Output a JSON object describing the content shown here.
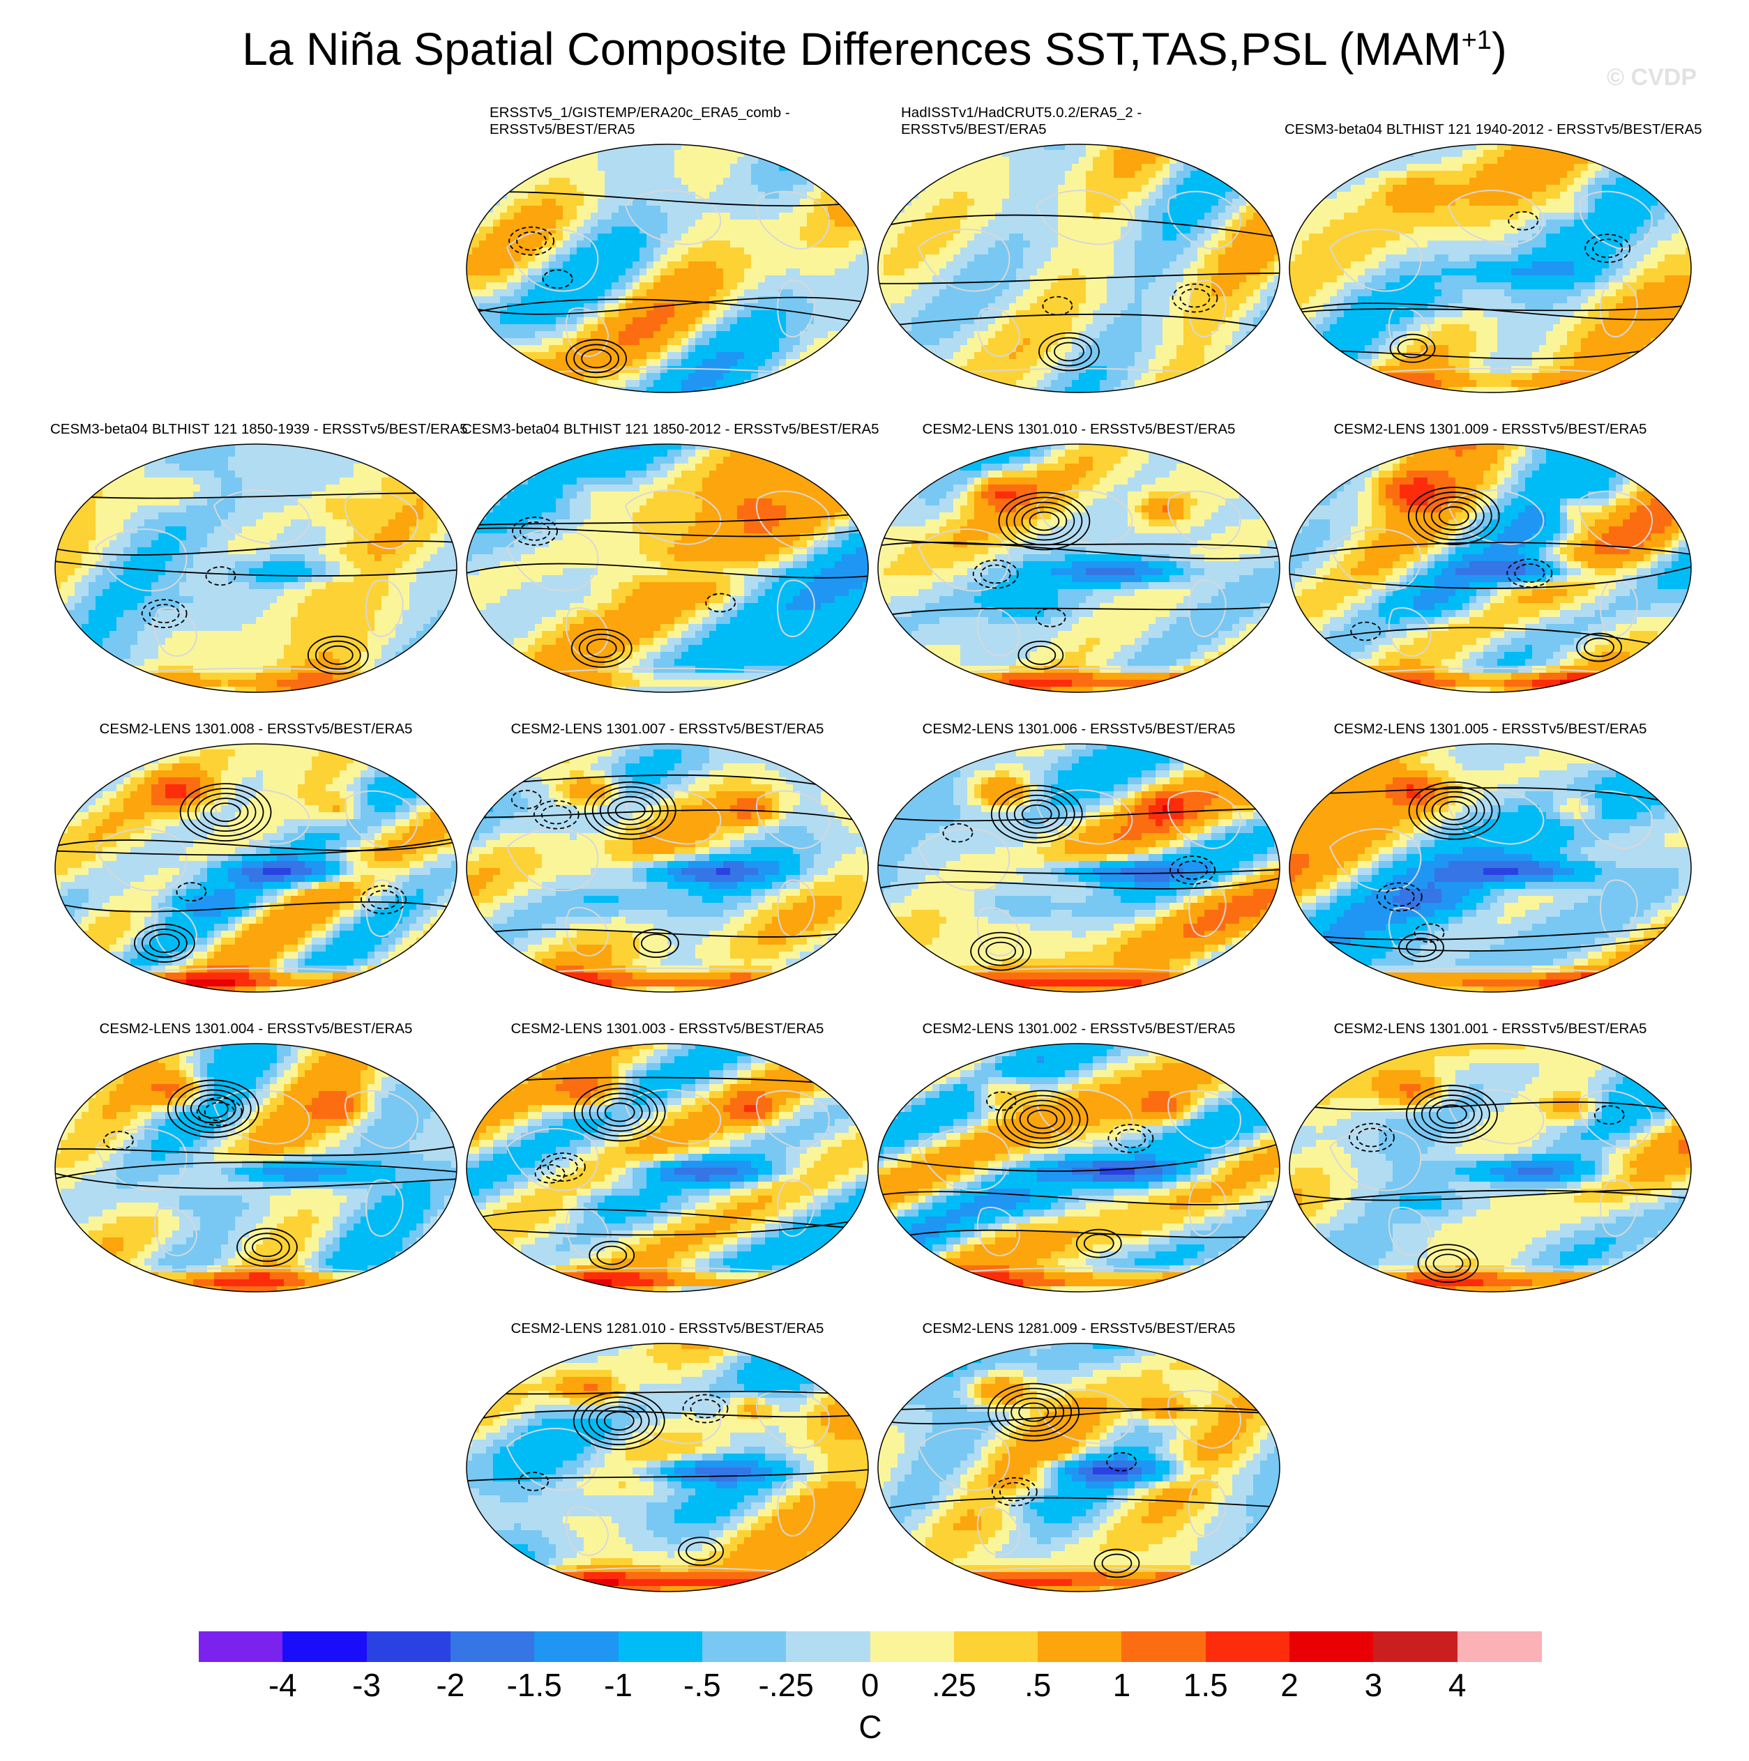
{
  "title_main": "La Niña Spatial Composite Differences SST,TAS,PSL (MAM",
  "title_superscript": "+1",
  "title_close": ")",
  "watermark": "© CVDP",
  "colors": {
    "land_outline": "#d8d8d8",
    "contour": "#000000"
  },
  "panels": [
    {
      "lines": [
        "ERSSTv5_1/GISTEMP/ERA20c_ERA5_comb -",
        "ERSSTv5/BEST/ERA5"
      ],
      "row": 0,
      "col": 1,
      "seed": 11,
      "pattern": 0
    },
    {
      "lines": [
        "HadISSTv1/HadCRUT5.0.2/ERA5_2 -",
        "ERSSTv5/BEST/ERA5"
      ],
      "row": 0,
      "col": 2,
      "seed": 23,
      "pattern": 0
    },
    {
      "lines": [
        "CESM3-beta04 BLTHIST 121 1940-2012 - ERSSTv5/BEST/ERA5"
      ],
      "row": 0,
      "col": 3,
      "seed": 37,
      "pattern": 1
    },
    {
      "lines": [
        "CESM3-beta04 BLTHIST 121 1850-1939 - ERSSTv5/BEST/ERA5"
      ],
      "row": 1,
      "col": 0,
      "seed": 41,
      "pattern": 1
    },
    {
      "lines": [
        "CESM3-beta04 BLTHIST 121 1850-2012 - ERSSTv5/BEST/ERA5"
      ],
      "row": 1,
      "col": 1,
      "seed": 53,
      "pattern": 1
    },
    {
      "lines": [
        "CESM2-LENS 1301.010 - ERSSTv5/BEST/ERA5"
      ],
      "row": 1,
      "col": 2,
      "seed": 61,
      "pattern": 2
    },
    {
      "lines": [
        "CESM2-LENS 1301.009 - ERSSTv5/BEST/ERA5"
      ],
      "row": 1,
      "col": 3,
      "seed": 71,
      "pattern": 2
    },
    {
      "lines": [
        "CESM2-LENS 1301.008 - ERSSTv5/BEST/ERA5"
      ],
      "row": 2,
      "col": 0,
      "seed": 83,
      "pattern": 2
    },
    {
      "lines": [
        "CESM2-LENS 1301.007 - ERSSTv5/BEST/ERA5"
      ],
      "row": 2,
      "col": 1,
      "seed": 97,
      "pattern": 2
    },
    {
      "lines": [
        "CESM2-LENS 1301.006 - ERSSTv5/BEST/ERA5"
      ],
      "row": 2,
      "col": 2,
      "seed": 101,
      "pattern": 2
    },
    {
      "lines": [
        "CESM2-LENS 1301.005 - ERSSTv5/BEST/ERA5"
      ],
      "row": 2,
      "col": 3,
      "seed": 113,
      "pattern": 2
    },
    {
      "lines": [
        "CESM2-LENS 1301.004 - ERSSTv5/BEST/ERA5"
      ],
      "row": 3,
      "col": 0,
      "seed": 127,
      "pattern": 2
    },
    {
      "lines": [
        "CESM2-LENS 1301.003 - ERSSTv5/BEST/ERA5"
      ],
      "row": 3,
      "col": 1,
      "seed": 131,
      "pattern": 2
    },
    {
      "lines": [
        "CESM2-LENS 1301.002 - ERSSTv5/BEST/ERA5"
      ],
      "row": 3,
      "col": 2,
      "seed": 139,
      "pattern": 2
    },
    {
      "lines": [
        "CESM2-LENS 1301.001 - ERSSTv5/BEST/ERA5"
      ],
      "row": 3,
      "col": 3,
      "seed": 149,
      "pattern": 2
    },
    {
      "lines": [
        "CESM2-LENS 1281.010 - ERSSTv5/BEST/ERA5"
      ],
      "row": 4,
      "col": 1,
      "seed": 157,
      "pattern": 2
    },
    {
      "lines": [
        "CESM2-LENS 1281.009 - ERSSTv5/BEST/ERA5"
      ],
      "row": 4,
      "col": 2,
      "seed": 163,
      "pattern": 2
    }
  ],
  "colorbar": {
    "colors": [
      "#7b22ee",
      "#1a0dfa",
      "#2a42e2",
      "#3575e5",
      "#1f96f3",
      "#00bcf6",
      "#78c8f3",
      "#b2dcf2",
      "#fbf59a",
      "#fdd235",
      "#fca50c",
      "#fc6d12",
      "#fd2d0c",
      "#e90005",
      "#cb1f1f",
      "#fbb1b5"
    ],
    "labels": [
      "-4",
      "-3",
      "-2",
      "-1.5",
      "-1",
      "-.5",
      "-.25",
      "0",
      ".25",
      ".5",
      "1",
      "1.5",
      "2",
      "3",
      "4"
    ],
    "units": "C"
  }
}
